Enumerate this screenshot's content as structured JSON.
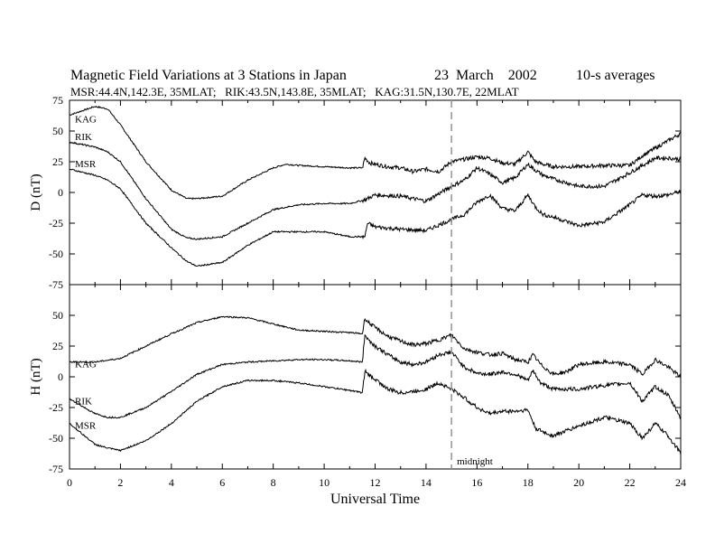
{
  "header": {
    "title_left": "Magnetic Field Variations at 3 Stations in Japan",
    "title_date": "23  March    2002",
    "title_avg": "10-s averages",
    "subtitle": "MSR:44.4N,142.3E, 35MLAT;   RIK:43.5N,143.8E, 35MLAT;   KAG:31.5N,130.7E, 22MLAT"
  },
  "colors": {
    "line": "#000000",
    "midnight_line": "#999999",
    "background": "#ffffff"
  },
  "chart_data": [
    {
      "type": "line",
      "panel": "D",
      "ylabel": "D (nT)",
      "ylim": [
        -75,
        75
      ],
      "yticks": [
        75,
        50,
        25,
        0,
        -25,
        -50,
        -75
      ],
      "xlim": [
        0,
        24
      ],
      "series": [
        {
          "name": "KAG",
          "x": [
            0,
            1,
            1.5,
            2,
            3,
            4,
            4.6,
            5,
            6,
            7,
            8,
            8.5,
            9,
            10,
            11,
            11.5,
            11.6,
            11.8,
            12,
            12.5,
            13,
            13.5,
            14,
            14.5,
            15,
            15.5,
            16,
            16.5,
            17,
            17.5,
            18,
            18.3,
            18.6,
            19,
            20,
            21,
            22,
            22.5,
            23,
            23.5,
            24
          ],
          "y": [
            63,
            70,
            68,
            55,
            25,
            2,
            -5,
            -5,
            -3,
            10,
            20,
            23,
            22,
            21,
            20,
            20,
            28,
            24,
            23,
            21,
            20,
            17,
            19,
            17,
            25,
            27,
            29,
            28,
            24,
            23,
            33,
            25,
            23,
            21,
            21,
            22,
            22,
            30,
            36,
            42,
            48
          ]
        },
        {
          "name": "RIK",
          "x": [
            0,
            1,
            1.5,
            2,
            3,
            4,
            4.6,
            5,
            6,
            7,
            8,
            9,
            10,
            11,
            11.6,
            12,
            13,
            14,
            15,
            15.5,
            16,
            16.5,
            17,
            17.5,
            18,
            18.3,
            18.6,
            19,
            20,
            21,
            22,
            22.5,
            23,
            23.5,
            24
          ],
          "y": [
            41,
            37,
            33,
            25,
            -5,
            -30,
            -37,
            -38,
            -36,
            -25,
            -14,
            -10,
            -9,
            -9,
            -6,
            -2,
            -3,
            -7,
            5,
            10,
            20,
            15,
            8,
            12,
            23,
            18,
            14,
            11,
            5,
            5,
            16,
            22,
            28,
            28,
            27
          ]
        },
        {
          "name": "MSR",
          "x": [
            0,
            1,
            1.5,
            2,
            3,
            4,
            4.6,
            5,
            6,
            7,
            8,
            9,
            10,
            11,
            11.6,
            11.7,
            12,
            13,
            14,
            15,
            15.5,
            16,
            16.5,
            17,
            17.5,
            18,
            18.3,
            18.6,
            19,
            20,
            21,
            22,
            22.5,
            23,
            23.5,
            24
          ],
          "y": [
            19,
            14,
            10,
            3,
            -25,
            -45,
            -56,
            -60,
            -57,
            -43,
            -32,
            -32,
            -32,
            -36,
            -36,
            -25,
            -28,
            -30,
            -31,
            -22,
            -18,
            -8,
            -2,
            -13,
            -15,
            -2,
            -12,
            -18,
            -20,
            -27,
            -24,
            -10,
            -2,
            -3,
            -2,
            1
          ]
        }
      ]
    },
    {
      "type": "line",
      "panel": "H",
      "ylabel": "H (nT)",
      "ylim": [
        -75,
        75
      ],
      "yticks": [
        50,
        25,
        0,
        -25,
        -50,
        -75
      ],
      "xlim": [
        0,
        24
      ],
      "xticks": [
        0,
        2,
        4,
        6,
        8,
        10,
        12,
        14,
        16,
        18,
        20,
        22,
        24
      ],
      "xlabel": "Universal Time",
      "series": [
        {
          "name": "KAG",
          "x": [
            0,
            1,
            2,
            3,
            4,
            5,
            6,
            7,
            8,
            9,
            10,
            11,
            11.5,
            11.6,
            11.7,
            12,
            12.5,
            13,
            13.5,
            14,
            14.5,
            15,
            15.5,
            16,
            16.5,
            17,
            17.5,
            18,
            18.2,
            18.5,
            19,
            19.5,
            20,
            21,
            22,
            22.5,
            23,
            23.5,
            24
          ],
          "y": [
            12,
            12,
            15,
            25,
            35,
            44,
            49,
            48,
            43,
            38,
            37,
            36,
            35,
            48,
            45,
            40,
            33,
            29,
            26,
            27,
            30,
            34,
            23,
            20,
            18,
            19,
            14,
            12,
            18,
            10,
            2,
            4,
            10,
            12,
            10,
            2,
            14,
            8,
            0
          ]
        },
        {
          "name": "RIK",
          "x": [
            0,
            1,
            1.5,
            2,
            3,
            4,
            5,
            6,
            7,
            8,
            9,
            10,
            11,
            11.5,
            11.6,
            11.7,
            12,
            12.5,
            13,
            13.5,
            14,
            14.5,
            15,
            15.5,
            16,
            16.5,
            17,
            17.5,
            18,
            18.2,
            18.5,
            19,
            20,
            21,
            22,
            22.5,
            23,
            23.5,
            24
          ],
          "y": [
            -18,
            -30,
            -33,
            -33,
            -25,
            -12,
            2,
            10,
            12,
            13,
            14,
            14,
            13,
            12,
            35,
            31,
            25,
            18,
            12,
            10,
            12,
            18,
            20,
            8,
            3,
            2,
            4,
            2,
            -3,
            5,
            -5,
            -10,
            -10,
            -7,
            -5,
            -20,
            -8,
            -15,
            -33
          ]
        },
        {
          "name": "MSR",
          "x": [
            0,
            1,
            1.5,
            2,
            3,
            4,
            5,
            6,
            7,
            8,
            9,
            10,
            11,
            11.5,
            11.6,
            11.7,
            12,
            12.5,
            13,
            13.5,
            14,
            14.5,
            15,
            15.5,
            16,
            16.5,
            17,
            17.5,
            18,
            18.3,
            18.6,
            19,
            20,
            21,
            22,
            22.5,
            23,
            23.5,
            24
          ],
          "y": [
            -38,
            -55,
            -58,
            -60,
            -52,
            -38,
            -20,
            -8,
            -3,
            -3,
            -5,
            -8,
            -11,
            -13,
            5,
            2,
            -2,
            -10,
            -13,
            -12,
            -10,
            -5,
            -10,
            -17,
            -25,
            -30,
            -28,
            -28,
            -27,
            -42,
            -45,
            -48,
            -40,
            -33,
            -38,
            -50,
            -38,
            -48,
            -62
          ]
        }
      ],
      "annotation": {
        "x": 15,
        "text": "midnight"
      }
    }
  ]
}
